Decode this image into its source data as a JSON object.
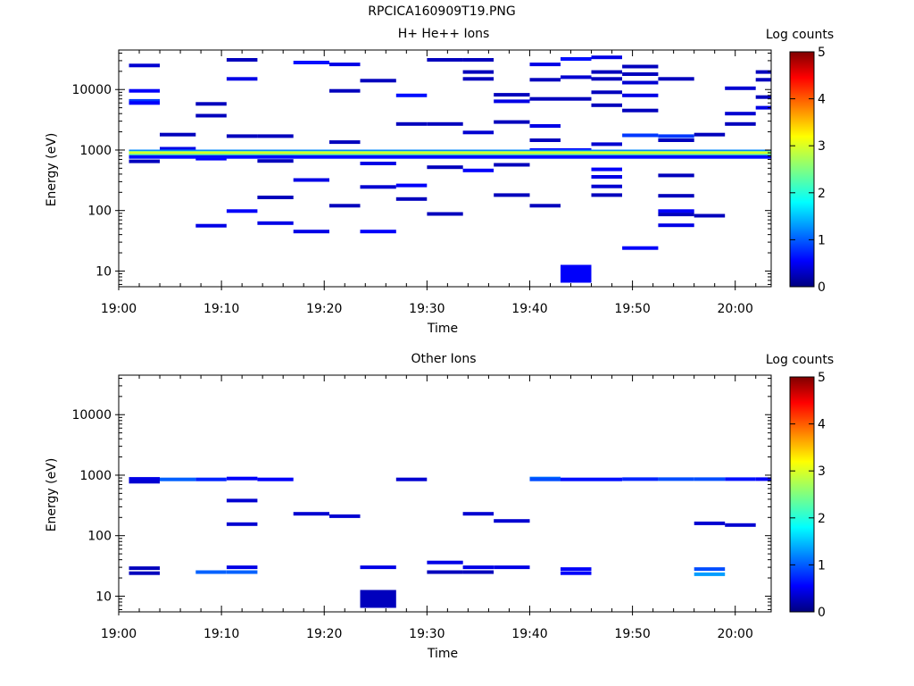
{
  "page_title": "RPCICA160909T19.PNG",
  "chart_data": [
    {
      "type": "heatmap",
      "title": "H+ He++ Ions",
      "xlabel": "Time",
      "ylabel": "Energy (eV)",
      "x_ticks": [
        "19:00",
        "19:10",
        "19:20",
        "19:30",
        "19:40",
        "19:50",
        "20:00"
      ],
      "y_ticks": [
        "10",
        "100",
        "1000",
        "10000"
      ],
      "y_scale": "log",
      "ylim": [
        5.5,
        45000
      ],
      "xlim_minutes": [
        0,
        63.5
      ],
      "colorbar": {
        "label": "Log counts",
        "min": 0,
        "max": 5,
        "ticks": [
          "0",
          "1",
          "2",
          "3",
          "4",
          "5"
        ]
      },
      "cells": [
        [
          1,
          4,
          25000,
          0.4
        ],
        [
          1,
          4,
          9500,
          0.6
        ],
        [
          1,
          4,
          6500,
          0.9
        ],
        [
          1,
          4,
          6000,
          0.6
        ],
        [
          1,
          4,
          800,
          0.5
        ],
        [
          1,
          4,
          650,
          0.3
        ],
        [
          4,
          7.5,
          1800,
          0.3
        ],
        [
          4,
          7.5,
          1050,
          0.5
        ],
        [
          4,
          7.5,
          900,
          0.8
        ],
        [
          4,
          7.5,
          790,
          1.0
        ],
        [
          7.5,
          10.5,
          5800,
          0.3
        ],
        [
          7.5,
          10.5,
          3700,
          0.3
        ],
        [
          7.5,
          10.5,
          880,
          1.0
        ],
        [
          7.5,
          10.5,
          720,
          0.6
        ],
        [
          7.5,
          10.5,
          56,
          0.5
        ],
        [
          10.5,
          13.5,
          31000,
          0.3
        ],
        [
          10.5,
          13.5,
          15000,
          0.5
        ],
        [
          10.5,
          13.5,
          1700,
          0.3
        ],
        [
          10.5,
          13.5,
          950,
          0.4
        ],
        [
          10.5,
          13.5,
          98,
          0.6
        ],
        [
          13.5,
          17,
          1700,
          0.3
        ],
        [
          13.5,
          17,
          950,
          0.4
        ],
        [
          13.5,
          17,
          790,
          0.6
        ],
        [
          13.5,
          17,
          660,
          0.3
        ],
        [
          13.5,
          17,
          165,
          0.3
        ],
        [
          13.5,
          17,
          62,
          0.5
        ],
        [
          17,
          20.5,
          28000,
          0.7
        ],
        [
          17,
          20.5,
          950,
          0.4
        ],
        [
          17,
          20.5,
          320,
          0.5
        ],
        [
          17,
          20.5,
          45,
          0.5
        ],
        [
          20.5,
          23.5,
          26000,
          0.5
        ],
        [
          20.5,
          23.5,
          9500,
          0.3
        ],
        [
          20.5,
          23.5,
          1350,
          0.3
        ],
        [
          20.5,
          23.5,
          800,
          1.5
        ],
        [
          20.5,
          23.5,
          120,
          0.3
        ],
        [
          23.5,
          27,
          14000,
          0.3
        ],
        [
          23.5,
          27,
          950,
          0.4
        ],
        [
          23.5,
          27,
          600,
          0.5
        ],
        [
          23.5,
          27,
          245,
          0.4
        ],
        [
          23.5,
          27,
          45,
          0.6
        ],
        [
          27,
          30,
          8000,
          0.7
        ],
        [
          27,
          30,
          2700,
          0.3
        ],
        [
          27,
          30,
          950,
          0.4
        ],
        [
          27,
          30,
          260,
          0.6
        ],
        [
          27,
          30,
          155,
          0.3
        ],
        [
          30,
          33.5,
          31000,
          0.3
        ],
        [
          30,
          33.5,
          2700,
          0.3
        ],
        [
          30,
          33.5,
          950,
          0.5
        ],
        [
          30,
          33.5,
          520,
          0.3
        ],
        [
          30,
          33.5,
          88,
          0.3
        ],
        [
          33.5,
          36.5,
          31000,
          0.3
        ],
        [
          33.5,
          36.5,
          19500,
          0.3
        ],
        [
          33.5,
          36.5,
          15000,
          0.3
        ],
        [
          33.5,
          36.5,
          1950,
          0.4
        ],
        [
          33.5,
          36.5,
          950,
          0.5
        ],
        [
          33.5,
          36.5,
          460,
          0.6
        ],
        [
          36.5,
          40,
          8200,
          0.3
        ],
        [
          36.5,
          40,
          6400,
          0.5
        ],
        [
          36.5,
          40,
          2900,
          0.3
        ],
        [
          36.5,
          40,
          950,
          0.5
        ],
        [
          36.5,
          40,
          570,
          0.3
        ],
        [
          36.5,
          40,
          180,
          0.3
        ],
        [
          40,
          43,
          26000,
          0.5
        ],
        [
          40,
          43,
          14500,
          0.3
        ],
        [
          40,
          43,
          7000,
          0.3
        ],
        [
          40,
          43,
          2500,
          0.5
        ],
        [
          40,
          43,
          1450,
          0.3
        ],
        [
          40,
          43,
          1000,
          0.6
        ],
        [
          40,
          43,
          120,
          0.3
        ],
        [
          43,
          46,
          32000,
          0.7
        ],
        [
          43,
          46,
          16000,
          0.4
        ],
        [
          43,
          46,
          7000,
          0.3
        ],
        [
          43,
          46,
          1000,
          0.6
        ],
        [
          43,
          46,
          9,
          0.6
        ],
        [
          46,
          49,
          34000,
          0.5
        ],
        [
          46,
          49,
          19500,
          0.3
        ],
        [
          46,
          49,
          15000,
          0.3
        ],
        [
          46,
          49,
          9000,
          0.3
        ],
        [
          46,
          49,
          5500,
          0.3
        ],
        [
          46,
          49,
          1250,
          0.4
        ],
        [
          46,
          49,
          950,
          0.6
        ],
        [
          46,
          49,
          480,
          0.6
        ],
        [
          46,
          49,
          360,
          0.5
        ],
        [
          46,
          49,
          250,
          0.4
        ],
        [
          46,
          49,
          180,
          0.3
        ],
        [
          49,
          52.5,
          24000,
          0.3
        ],
        [
          49,
          52.5,
          18000,
          0.3
        ],
        [
          49,
          52.5,
          13000,
          0.4
        ],
        [
          49,
          52.5,
          8000,
          0.5
        ],
        [
          49,
          52.5,
          4500,
          0.3
        ],
        [
          49,
          52.5,
          1750,
          0.9
        ],
        [
          49,
          52.5,
          24,
          0.6
        ],
        [
          52.5,
          56,
          15000,
          0.3
        ],
        [
          52.5,
          56,
          1700,
          0.9
        ],
        [
          52.5,
          56,
          1450,
          0.3
        ],
        [
          52.5,
          56,
          950,
          0.5
        ],
        [
          52.5,
          56,
          380,
          0.3
        ],
        [
          52.5,
          56,
          175,
          0.3
        ],
        [
          52.5,
          56,
          98,
          0.6
        ],
        [
          52.5,
          56,
          86,
          0.3
        ],
        [
          52.5,
          56,
          57,
          0.5
        ],
        [
          56,
          59,
          1800,
          0.3
        ],
        [
          56,
          59,
          950,
          0.5
        ],
        [
          56,
          59,
          82,
          0.3
        ],
        [
          59,
          62,
          10500,
          0.4
        ],
        [
          59,
          62,
          4000,
          0.4
        ],
        [
          59,
          62,
          2700,
          0.3
        ],
        [
          59,
          62,
          950,
          0.5
        ],
        [
          62,
          63.5,
          19500,
          0.3
        ],
        [
          62,
          63.5,
          14500,
          0.3
        ],
        [
          62,
          63.5,
          7500,
          0.3
        ],
        [
          62,
          63.5,
          5000,
          0.5
        ],
        [
          62,
          63.5,
          950,
          0.5
        ]
      ],
      "bands": [
        [
          1,
          63.5,
          950,
          1.3
        ],
        [
          1,
          63.5,
          900,
          2.6
        ],
        [
          1,
          63.5,
          860,
          3.1
        ],
        [
          1,
          63.5,
          820,
          2.4
        ],
        [
          1,
          63.5,
          770,
          0.7
        ]
      ]
    },
    {
      "type": "heatmap",
      "title": "Other Ions",
      "xlabel": "Time",
      "ylabel": "Energy (eV)",
      "x_ticks": [
        "19:00",
        "19:10",
        "19:20",
        "19:30",
        "19:40",
        "19:50",
        "20:00"
      ],
      "y_ticks": [
        "10",
        "100",
        "1000",
        "10000"
      ],
      "y_scale": "log",
      "ylim": [
        5.5,
        45000
      ],
      "xlim_minutes": [
        0,
        63.5
      ],
      "colorbar": {
        "label": "Log counts",
        "min": 0,
        "max": 5,
        "ticks": [
          "0",
          "1",
          "2",
          "3",
          "4",
          "5"
        ]
      },
      "cells": [
        [
          1,
          4,
          870,
          0.5
        ],
        [
          1,
          4,
          780,
          0.4
        ],
        [
          1,
          4,
          29,
          0.3
        ],
        [
          1,
          4,
          24,
          0.3
        ],
        [
          4,
          7.5,
          850,
          1.1
        ],
        [
          7.5,
          10.5,
          850,
          0.8
        ],
        [
          7.5,
          10.5,
          25,
          1.1
        ],
        [
          10.5,
          13.5,
          880,
          0.6
        ],
        [
          10.5,
          13.5,
          380,
          0.4
        ],
        [
          10.5,
          13.5,
          155,
          0.4
        ],
        [
          10.5,
          13.5,
          30,
          0.5
        ],
        [
          10.5,
          13.5,
          25,
          1.1
        ],
        [
          13.5,
          17,
          850,
          0.6
        ],
        [
          17,
          20.5,
          230,
          0.4
        ],
        [
          20.5,
          23.5,
          210,
          0.4
        ],
        [
          23.5,
          27,
          30,
          0.5
        ],
        [
          23.5,
          27,
          9,
          0.3
        ],
        [
          27,
          30,
          850,
          0.4
        ],
        [
          30,
          33.5,
          36,
          0.5
        ],
        [
          30,
          33.5,
          25,
          0.3
        ],
        [
          33.5,
          36.5,
          230,
          0.4
        ],
        [
          33.5,
          36.5,
          30,
          0.5
        ],
        [
          33.5,
          36.5,
          25,
          0.3
        ],
        [
          36.5,
          40,
          175,
          0.4
        ],
        [
          36.5,
          40,
          30,
          0.5
        ],
        [
          40,
          43,
          880,
          1.2
        ],
        [
          40,
          43,
          850,
          1.0
        ],
        [
          43,
          46,
          850,
          0.7
        ],
        [
          43,
          46,
          28,
          0.6
        ],
        [
          43,
          46,
          24,
          0.6
        ],
        [
          46,
          49,
          850,
          0.7
        ],
        [
          49,
          52.5,
          860,
          0.8
        ],
        [
          52.5,
          56,
          860,
          1.0
        ],
        [
          56,
          59,
          860,
          1.0
        ],
        [
          56,
          59,
          160,
          0.4
        ],
        [
          56,
          59,
          28,
          1.0
        ],
        [
          56,
          59,
          23,
          1.4
        ],
        [
          59,
          62,
          860,
          0.7
        ],
        [
          59,
          62,
          150,
          0.4
        ],
        [
          62,
          63.5,
          860,
          0.6
        ]
      ],
      "bands": []
    }
  ]
}
